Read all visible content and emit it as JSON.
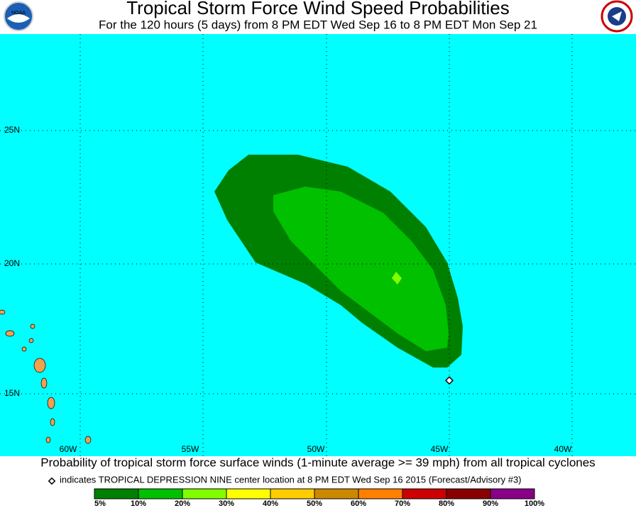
{
  "header": {
    "title": "Tropical Storm Force Wind Speed Probabilities",
    "subtitle": "For the 120 hours (5 days) from 8 PM EDT Wed Sep 16 to 8 PM EDT Mon Sep 21"
  },
  "map": {
    "lat_labels": [
      "25N",
      "20N",
      "15N"
    ],
    "lon_labels": [
      "60W",
      "55W",
      "50W",
      "45W",
      "40W"
    ]
  },
  "caption": "Probability of tropical storm force surface winds (1-minute average >= 39 mph) from all tropical cyclones",
  "note": "indicates TROPICAL DEPRESSION NINE center location at 8 PM EDT Wed Sep 16 2015 (Forecast/Advisory #3)",
  "legend": {
    "labels": [
      "5%",
      "10%",
      "20%",
      "30%",
      "40%",
      "50%",
      "60%",
      "70%",
      "80%",
      "90%",
      "100%"
    ],
    "colors": [
      "#008000",
      "#00c000",
      "#80ff00",
      "#ffff00",
      "#ffcc00",
      "#cc8800",
      "#ff8000",
      "#cc0000",
      "#880000",
      "#880088"
    ]
  }
}
